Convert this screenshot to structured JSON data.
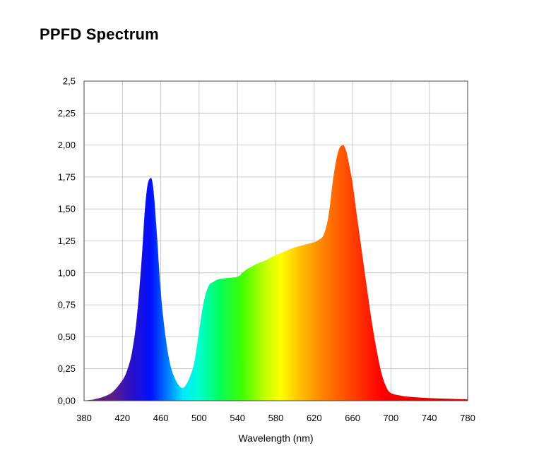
{
  "chart_data": {
    "type": "area",
    "title": "PPFD Spectrum",
    "xlabel": "Wavelength (nm)",
    "ylabel": "",
    "xlim": [
      380,
      780
    ],
    "ylim": [
      0,
      2.5
    ],
    "x_ticks": [
      380,
      420,
      460,
      500,
      540,
      580,
      620,
      660,
      700,
      740,
      780
    ],
    "y_ticks": [
      {
        "value": 0,
        "label": "0,00"
      },
      {
        "value": 0.25,
        "label": "0,25"
      },
      {
        "value": 0.5,
        "label": "0,50"
      },
      {
        "value": 0.75,
        "label": "0,75"
      },
      {
        "value": 1.0,
        "label": "1,00"
      },
      {
        "value": 1.25,
        "label": "1,25"
      },
      {
        "value": 1.5,
        "label": "1,50"
      },
      {
        "value": 1.75,
        "label": "1,75"
      },
      {
        "value": 2.0,
        "label": "2,00"
      },
      {
        "value": 2.25,
        "label": "2,25"
      },
      {
        "value": 2.5,
        "label": "2,5"
      }
    ],
    "grid": true,
    "fill": "visible-spectrum-gradient",
    "series": [
      {
        "x": [
          380,
          390,
          400,
          410,
          420,
          425,
          430,
          435,
          440,
          443,
          446,
          449,
          451,
          453,
          456,
          460,
          465,
          470,
          475,
          480,
          483,
          486,
          490,
          495,
          500,
          505,
          510,
          515,
          520,
          530,
          540,
          545,
          550,
          555,
          560,
          570,
          580,
          590,
          600,
          610,
          620,
          625,
          630,
          635,
          640,
          645,
          650,
          653,
          655,
          660,
          665,
          670,
          675,
          680,
          685,
          690,
          695,
          700,
          710,
          720,
          740,
          760,
          780
        ],
        "y": [
          0.0,
          0.01,
          0.03,
          0.07,
          0.16,
          0.24,
          0.38,
          0.65,
          1.1,
          1.45,
          1.68,
          1.74,
          1.72,
          1.6,
          1.3,
          0.85,
          0.5,
          0.28,
          0.17,
          0.11,
          0.1,
          0.12,
          0.18,
          0.3,
          0.55,
          0.78,
          0.9,
          0.93,
          0.95,
          0.96,
          0.97,
          1.0,
          1.03,
          1.05,
          1.07,
          1.1,
          1.14,
          1.17,
          1.2,
          1.22,
          1.24,
          1.26,
          1.3,
          1.45,
          1.75,
          1.95,
          2.0,
          1.96,
          1.9,
          1.7,
          1.42,
          1.15,
          0.88,
          0.62,
          0.4,
          0.22,
          0.11,
          0.06,
          0.04,
          0.03,
          0.02,
          0.015,
          0.01
        ]
      }
    ],
    "gradient_stops": [
      {
        "wavelength": 380,
        "color": "#6a1a6a"
      },
      {
        "wavelength": 410,
        "color": "#5a1e8a"
      },
      {
        "wavelength": 430,
        "color": "#2a10c8"
      },
      {
        "wavelength": 450,
        "color": "#0010ff"
      },
      {
        "wavelength": 465,
        "color": "#0070ff"
      },
      {
        "wavelength": 483,
        "color": "#00e8ff"
      },
      {
        "wavelength": 500,
        "color": "#00ffd0"
      },
      {
        "wavelength": 520,
        "color": "#00ff60"
      },
      {
        "wavelength": 545,
        "color": "#40ff00"
      },
      {
        "wavelength": 570,
        "color": "#c8ff00"
      },
      {
        "wavelength": 585,
        "color": "#ffff00"
      },
      {
        "wavelength": 605,
        "color": "#ffc000"
      },
      {
        "wavelength": 630,
        "color": "#ff8000"
      },
      {
        "wavelength": 660,
        "color": "#ff4000"
      },
      {
        "wavelength": 690,
        "color": "#ff0000"
      },
      {
        "wavelength": 780,
        "color": "#cc0000"
      }
    ]
  }
}
